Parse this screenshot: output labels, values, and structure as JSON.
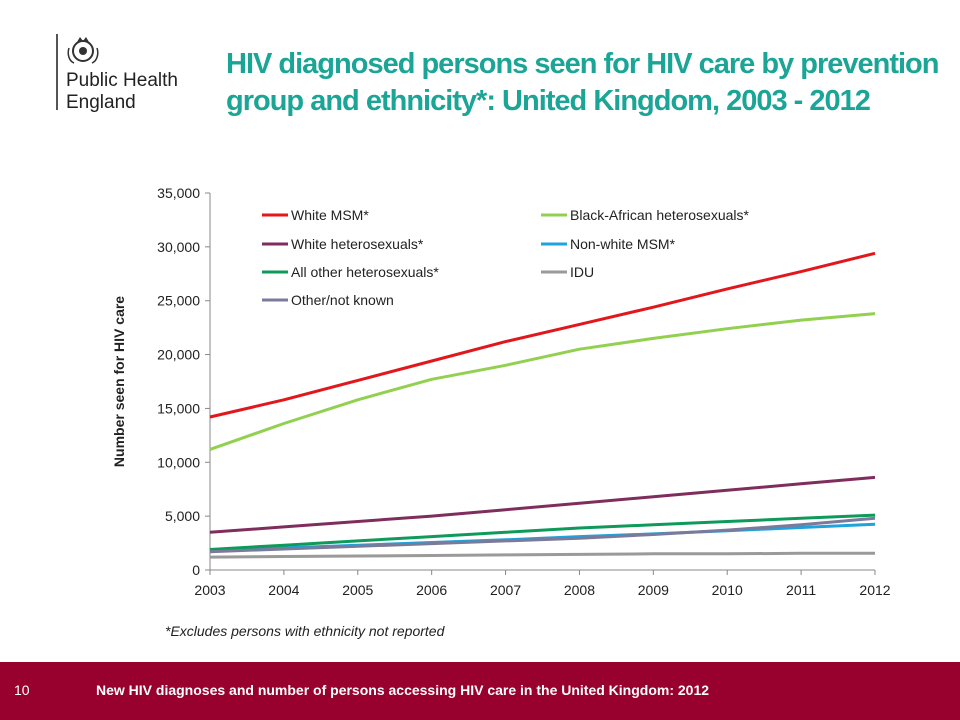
{
  "logo": {
    "line1": "Public Health",
    "line2": "England"
  },
  "title": "HIV diagnosed persons seen for HIV care by prevention group and ethnicity*: United Kingdom, 2003 - 2012",
  "footnote": "*Excludes persons with ethnicity not reported",
  "footer": {
    "page": "10",
    "text": "New HIV diagnoses and number of persons accessing HIV care in the United Kingdom: 2012"
  },
  "chart_data": {
    "type": "line",
    "title": "",
    "xlabel": "",
    "ylabel": "Number seen for  HIV care",
    "x": [
      2003,
      2004,
      2005,
      2006,
      2007,
      2008,
      2009,
      2010,
      2011,
      2012
    ],
    "ylim": [
      0,
      35000
    ],
    "yticks": [
      0,
      5000,
      10000,
      15000,
      20000,
      25000,
      30000,
      35000
    ],
    "ytick_labels": [
      "0",
      "5,000",
      "10,000",
      "15,000",
      "20,000",
      "25,000",
      "30,000",
      "35,000"
    ],
    "grid": false,
    "legend_position": "top",
    "series": [
      {
        "name": "White MSM*",
        "color": "#e3161b",
        "values": [
          14200,
          15800,
          17600,
          19400,
          21200,
          22800,
          24400,
          26100,
          27700,
          29400
        ]
      },
      {
        "name": "Black-African heterosexuals*",
        "color": "#92d050",
        "values": [
          11200,
          13600,
          15800,
          17700,
          19000,
          20500,
          21500,
          22400,
          23200,
          23800
        ]
      },
      {
        "name": "White heterosexuals*",
        "color": "#7f2d5d",
        "values": [
          3500,
          4000,
          4500,
          5000,
          5600,
          6200,
          6800,
          7400,
          8000,
          8600
        ]
      },
      {
        "name": "Non-white MSM*",
        "color": "#1fa3dc",
        "values": [
          1800,
          2050,
          2300,
          2550,
          2800,
          3100,
          3350,
          3650,
          3950,
          4250
        ]
      },
      {
        "name": "All other heterosexuals*",
        "color": "#0e9a5a",
        "values": [
          1900,
          2300,
          2700,
          3100,
          3500,
          3900,
          4200,
          4500,
          4800,
          5100
        ]
      },
      {
        "name": "IDU",
        "color": "#9a9a9a",
        "values": [
          1200,
          1250,
          1300,
          1350,
          1400,
          1450,
          1500,
          1500,
          1550,
          1550
        ]
      },
      {
        "name": "Other/not known",
        "color": "#7a7a9a",
        "values": [
          1700,
          1950,
          2200,
          2450,
          2700,
          2950,
          3300,
          3700,
          4200,
          4800
        ]
      }
    ]
  }
}
